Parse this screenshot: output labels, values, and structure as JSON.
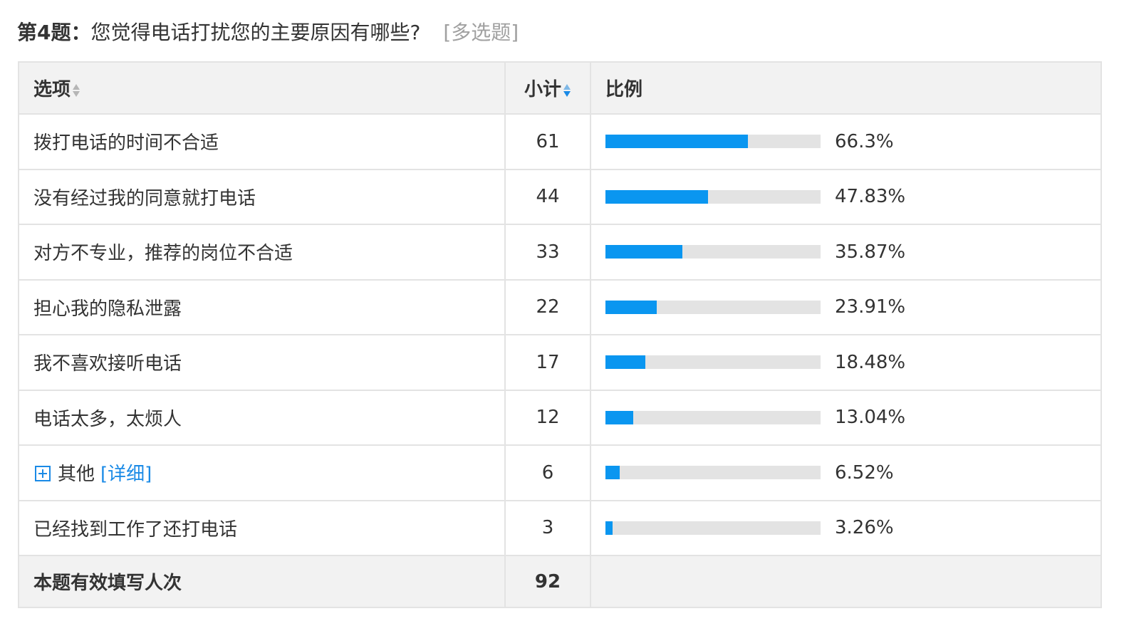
{
  "question": {
    "number_label": "第4题：",
    "text": "您觉得电话打扰您的主要原因有哪些?",
    "type_label": "[多选题]"
  },
  "table": {
    "headers": {
      "option": "选项",
      "count": "小计",
      "ratio": "比例"
    },
    "rows": [
      {
        "option": "拨打电话的时间不合适",
        "count": "61",
        "percent": "66.3%",
        "value": 66.3
      },
      {
        "option": "没有经过我的同意就打电话",
        "count": "44",
        "percent": "47.83%",
        "value": 47.83
      },
      {
        "option": "对方不专业，推荐的岗位不合适",
        "count": "33",
        "percent": "35.87%",
        "value": 35.87
      },
      {
        "option": "担心我的隐私泄露",
        "count": "22",
        "percent": "23.91%",
        "value": 23.91
      },
      {
        "option": "我不喜欢接听电话",
        "count": "17",
        "percent": "18.48%",
        "value": 18.48
      },
      {
        "option": "电话太多，太烦人",
        "count": "12",
        "percent": "13.04%",
        "value": 13.04
      },
      {
        "option": "其他",
        "detail_label": "[详细]",
        "count": "6",
        "percent": "6.52%",
        "value": 6.52,
        "expandable": true
      },
      {
        "option": "已经找到工作了还打电话",
        "count": "3",
        "percent": "3.26%",
        "value": 3.26
      }
    ],
    "total": {
      "label": "本题有效填写人次",
      "count": "92"
    }
  },
  "colors": {
    "bar_fill": "#0a96f0",
    "bar_track": "#e3e3e3",
    "link": "#1a8ae6"
  },
  "icons": {
    "expand": "plus-square-icon",
    "sort": "sort-arrows-icon"
  }
}
